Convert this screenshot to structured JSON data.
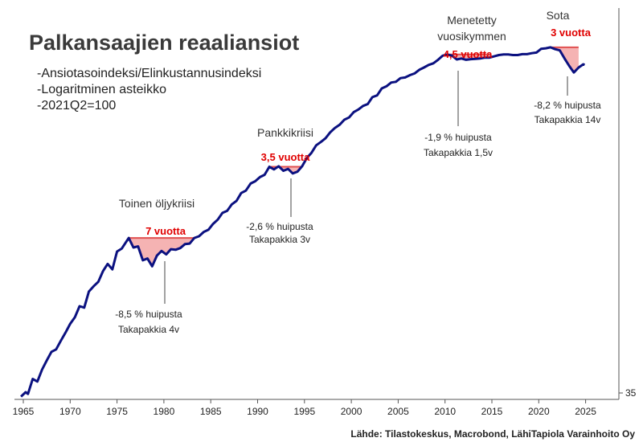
{
  "title": "Palkansaajien reaaliansiot",
  "notes": [
    "-Ansiotasoindeksi/Elinkustannusindeksi",
    "-Logaritminen asteikko",
    "-2021Q2=100"
  ],
  "source": "Lähde: Tilastokeskus, Macrobond, LähiTapiola Varainhoito Oy",
  "colors": {
    "line": "#0b1180",
    "highlight": "#f5b3b3",
    "highlight_edge": "#e05050",
    "red_text": "#e00000",
    "callout": "#444444"
  },
  "chart_data": {
    "type": "line",
    "title": "Palkansaajien reaaliansiot",
    "scale": "log",
    "xlim": [
      1964.5,
      2028.5
    ],
    "ylim": [
      35,
      120
    ],
    "x_ticks": [
      1965,
      1970,
      1975,
      1980,
      1985,
      1990,
      1995,
      2000,
      2005,
      2010,
      2015,
      2020,
      2025
    ],
    "y_ticks": [
      35
    ],
    "grid": false,
    "series": [
      {
        "values": [
          [
            1964.75,
            35.3
          ],
          [
            1965.25,
            35.8
          ],
          [
            1965.5,
            35.6
          ],
          [
            1966.0,
            37.3
          ],
          [
            1966.5,
            37.0
          ],
          [
            1967.0,
            38.4
          ],
          [
            1967.5,
            39.5
          ],
          [
            1968.0,
            40.6
          ],
          [
            1968.5,
            40.9
          ],
          [
            1969.0,
            42.0
          ],
          [
            1969.5,
            43.1
          ],
          [
            1970.0,
            44.3
          ],
          [
            1970.5,
            45.2
          ],
          [
            1971.0,
            46.8
          ],
          [
            1971.5,
            46.6
          ],
          [
            1972.0,
            49.0
          ],
          [
            1972.5,
            49.8
          ],
          [
            1973.0,
            50.5
          ],
          [
            1973.5,
            52.2
          ],
          [
            1974.0,
            53.4
          ],
          [
            1974.5,
            52.5
          ],
          [
            1975.0,
            55.5
          ],
          [
            1975.5,
            56.0
          ],
          [
            1976.25,
            57.9
          ],
          [
            1976.75,
            56.2
          ],
          [
            1977.25,
            56.4
          ],
          [
            1977.75,
            54.0
          ],
          [
            1978.25,
            54.3
          ],
          [
            1978.75,
            53.0
          ],
          [
            1979.25,
            54.8
          ],
          [
            1979.75,
            55.6
          ],
          [
            1980.25,
            55.0
          ],
          [
            1980.75,
            55.9
          ],
          [
            1981.25,
            55.8
          ],
          [
            1981.75,
            56.1
          ],
          [
            1982.25,
            56.8
          ],
          [
            1982.75,
            56.9
          ],
          [
            1983.25,
            57.9
          ],
          [
            1983.75,
            58.2
          ],
          [
            1984.25,
            59.0
          ],
          [
            1984.75,
            59.4
          ],
          [
            1985.25,
            60.5
          ],
          [
            1985.75,
            61.3
          ],
          [
            1986.25,
            62.6
          ],
          [
            1986.75,
            63.0
          ],
          [
            1987.25,
            64.3
          ],
          [
            1987.75,
            65.0
          ],
          [
            1988.25,
            66.6
          ],
          [
            1988.75,
            67.1
          ],
          [
            1989.25,
            68.6
          ],
          [
            1989.75,
            69.1
          ],
          [
            1990.25,
            70.0
          ],
          [
            1990.75,
            70.5
          ],
          [
            1991.25,
            72.3
          ],
          [
            1991.75,
            71.7
          ],
          [
            1992.25,
            72.4
          ],
          [
            1992.75,
            71.4
          ],
          [
            1993.25,
            71.8
          ],
          [
            1993.75,
            70.8
          ],
          [
            1994.25,
            71.2
          ],
          [
            1994.75,
            72.4
          ],
          [
            1995.25,
            74.3
          ],
          [
            1995.75,
            75.5
          ],
          [
            1996.25,
            77.3
          ],
          [
            1996.75,
            78.1
          ],
          [
            1997.25,
            79.0
          ],
          [
            1997.75,
            80.5
          ],
          [
            1998.25,
            81.6
          ],
          [
            1998.75,
            82.4
          ],
          [
            1999.25,
            83.7
          ],
          [
            1999.75,
            84.3
          ],
          [
            2000.25,
            85.7
          ],
          [
            2000.75,
            86.4
          ],
          [
            2001.25,
            87.4
          ],
          [
            2001.75,
            87.9
          ],
          [
            2002.25,
            89.8
          ],
          [
            2002.75,
            90.3
          ],
          [
            2003.25,
            92.3
          ],
          [
            2003.75,
            92.9
          ],
          [
            2004.25,
            94.0
          ],
          [
            2004.75,
            94.2
          ],
          [
            2005.25,
            95.3
          ],
          [
            2005.75,
            95.5
          ],
          [
            2006.25,
            96.2
          ],
          [
            2006.75,
            96.7
          ],
          [
            2007.25,
            97.8
          ],
          [
            2007.75,
            98.5
          ],
          [
            2008.25,
            99.3
          ],
          [
            2008.75,
            99.8
          ],
          [
            2009.25,
            100.9
          ],
          [
            2009.75,
            102.2
          ],
          [
            2010.25,
            102.6
          ],
          [
            2010.75,
            102.2
          ],
          [
            2011.25,
            101.0
          ],
          [
            2011.75,
            101.3
          ],
          [
            2012.25,
            100.9
          ],
          [
            2012.75,
            101.1
          ],
          [
            2013.25,
            101.2
          ],
          [
            2013.75,
            101.3
          ],
          [
            2014.25,
            101.6
          ],
          [
            2014.75,
            101.6
          ],
          [
            2015.25,
            102.0
          ],
          [
            2015.75,
            102.4
          ],
          [
            2016.25,
            102.6
          ],
          [
            2016.75,
            102.6
          ],
          [
            2017.25,
            102.4
          ],
          [
            2017.75,
            102.4
          ],
          [
            2018.25,
            102.7
          ],
          [
            2018.75,
            102.7
          ],
          [
            2019.25,
            103.0
          ],
          [
            2019.75,
            103.2
          ],
          [
            2020.25,
            104.4
          ],
          [
            2020.75,
            104.6
          ],
          [
            2021.25,
            104.9
          ],
          [
            2021.75,
            104.3
          ],
          [
            2022.25,
            103.9
          ],
          [
            2022.75,
            101.3
          ],
          [
            2023.25,
            99.0
          ],
          [
            2023.75,
            97.0
          ],
          [
            2024.25,
            98.5
          ],
          [
            2024.75,
            99.5
          ],
          [
            2024.9,
            99.3
          ]
        ]
      }
    ],
    "episodes": [
      {
        "label": "Toinen öljykriisi",
        "duration": "7 vuotta",
        "drop": "-8,5 % huipusta",
        "recovery": "Takapakkia 4v",
        "start": 1976.25,
        "end": 1983.25
      },
      {
        "label": "Pankkikriisi",
        "duration": "3,5 vuotta",
        "drop": "-2,6 % huipusta",
        "recovery": "Takapakkia 3v",
        "start": 1991.25,
        "end": 1994.75
      },
      {
        "label_lines": [
          "Menetetty",
          "vuosikymmen"
        ],
        "duration": "4,5 vuotta",
        "drop": "-1,9 % huipusta",
        "recovery": "Takapakkia 1,5v",
        "start": 2010.25,
        "end": 2014.75
      },
      {
        "label": "Sota",
        "duration": "3 vuotta",
        "drop": "-8,2 % huipusta",
        "recovery": "Takapakkia 14v",
        "start": 2021.25,
        "end": 2024.25
      }
    ]
  }
}
